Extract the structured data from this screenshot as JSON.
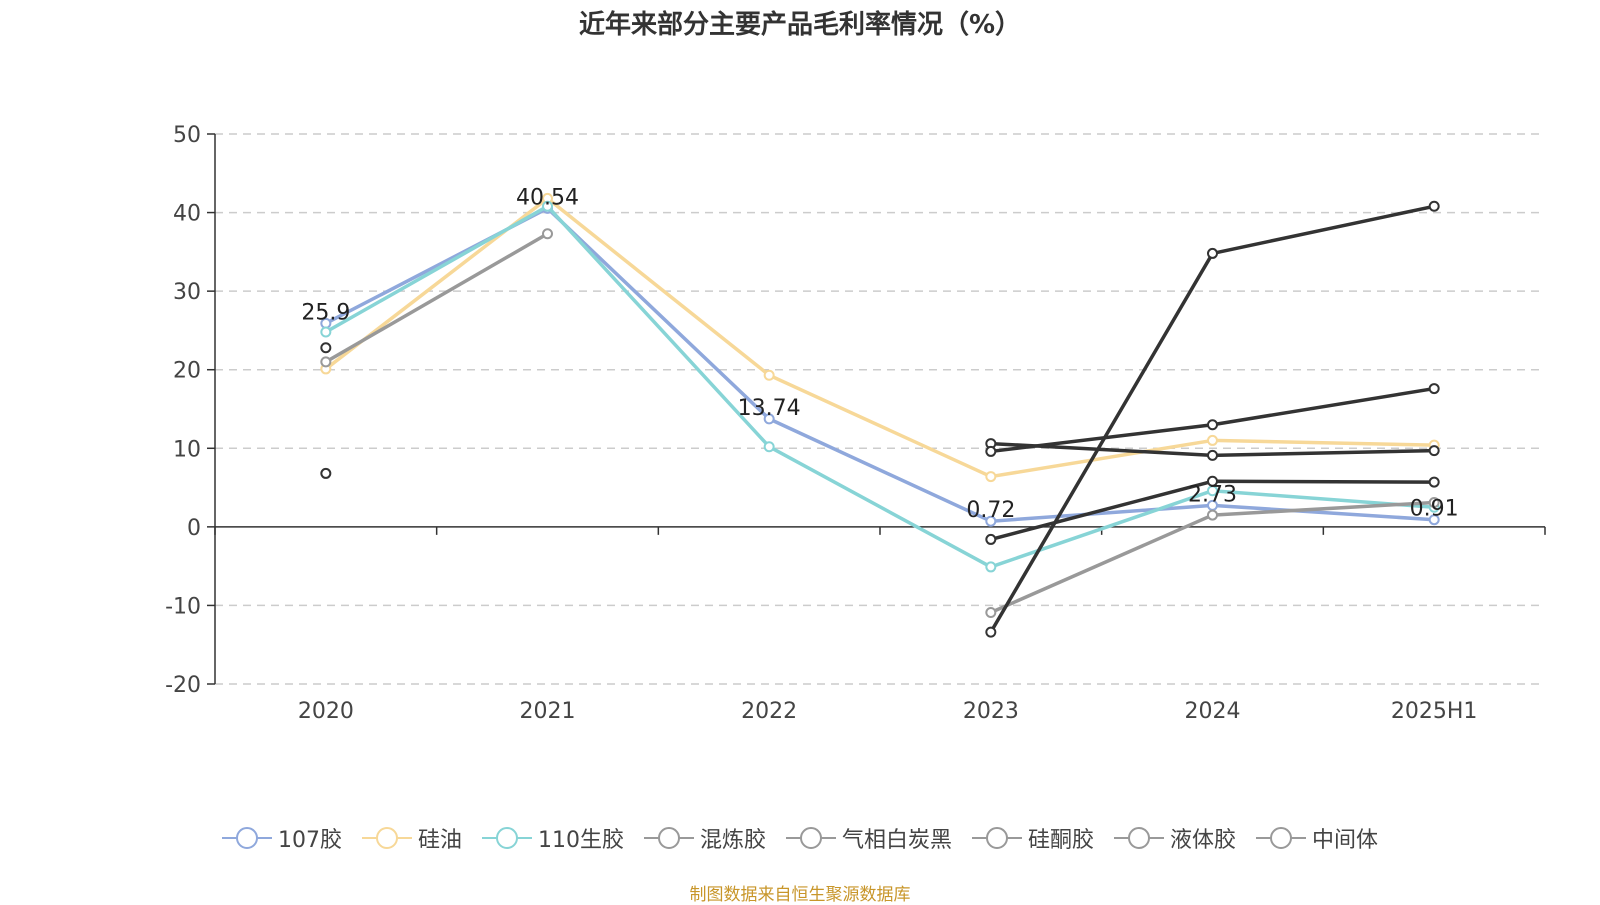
{
  "chart_data": {
    "type": "line",
    "title": "近年来部分主要产品毛利率情况（%）",
    "categories": [
      "2020",
      "2021",
      "2022",
      "2023",
      "2024",
      "2025H1"
    ],
    "ylim": [
      -20,
      50
    ],
    "yticks": [
      "50",
      "40",
      "30",
      "20",
      "10",
      "0",
      "-10",
      "-20"
    ],
    "grid": true,
    "legend_position": "bottom",
    "series": [
      {
        "name": "107胶",
        "color": "#8fa8dc",
        "values": [
          25.9,
          40.54,
          13.74,
          0.72,
          2.73,
          0.91
        ]
      },
      {
        "name": "硅油",
        "color": "#f7d898",
        "values": [
          20.1,
          41.8,
          19.3,
          6.4,
          11.0,
          10.4
        ]
      },
      {
        "name": "110生胶",
        "color": "#87d4d6",
        "values": [
          24.8,
          40.8,
          10.2,
          -5.1,
          4.6,
          2.5
        ]
      },
      {
        "name": "混炼胶",
        "color": "#999999",
        "values": [
          21.0,
          37.3,
          null,
          -10.9,
          1.5,
          3.1
        ]
      },
      {
        "name": "气相白炭黑",
        "color": "#999999",
        "values": [
          6.8,
          null,
          null,
          -1.6,
          5.8,
          5.7
        ]
      },
      {
        "name": "硅酮胶",
        "color": "#999999",
        "values": [
          22.8,
          null,
          null,
          10.6,
          9.1,
          9.7
        ]
      },
      {
        "name": "液体胶",
        "color": "#999999",
        "values": [
          null,
          null,
          null,
          9.6,
          13.0,
          17.6
        ]
      },
      {
        "name": "中间体",
        "color": "#999999",
        "values": [
          null,
          null,
          null,
          -13.4,
          34.8,
          40.8
        ]
      }
    ],
    "line_colors_override": {
      "混炼胶": "#999999",
      "气相白炭黑": "#333333",
      "硅酮胶": "#333333",
      "液体胶": "#333333",
      "中间体": "#333333"
    },
    "data_labels": [
      {
        "category": "2020",
        "text": "25.9",
        "value": 25.9
      },
      {
        "category": "2021",
        "text": "40.54",
        "value": 40.54
      },
      {
        "category": "2022",
        "text": "13.74",
        "value": 13.74
      },
      {
        "category": "2023",
        "text": "0.72",
        "value": 0.72
      },
      {
        "category": "2024",
        "text": "2.73",
        "value": 2.73
      },
      {
        "category": "2025H1",
        "text": "0.91",
        "value": 0.91
      }
    ]
  },
  "source_note": "制图数据来自恒生聚源数据库"
}
